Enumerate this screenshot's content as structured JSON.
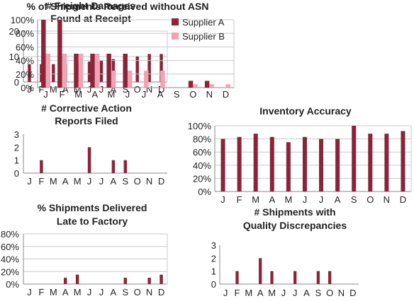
{
  "chart_data": [
    {
      "id": "freight",
      "type": "bar",
      "title": [
        "# Freight Damages",
        "Found at Receipt"
      ],
      "categories": [
        "J",
        "F",
        "M",
        "A",
        "M",
        "J",
        "J",
        "A",
        "S",
        "O",
        "N",
        "D"
      ],
      "ylim": [
        0,
        20
      ],
      "yticks": [
        0,
        10,
        20
      ],
      "ytick_labels": [
        "0",
        "10",
        "20"
      ],
      "grid": true,
      "series": [
        {
          "color": "#8b2339",
          "values": [
            7,
            7,
            7,
            7,
            8,
            8,
            8.5,
            9,
            10,
            10,
            11,
            11
          ]
        }
      ]
    },
    {
      "id": "asn",
      "type": "bar",
      "title": [
        "% of Shipments Received without ASN"
      ],
      "categories": [
        "J",
        "F",
        "M",
        "A",
        "M",
        "J",
        "J",
        "A",
        "S",
        "O",
        "N",
        "D"
      ],
      "ylim": [
        0,
        100
      ],
      "yticks": [
        0,
        20,
        40,
        60,
        80,
        100
      ],
      "ytick_labels": [
        "0%",
        "20%",
        "40%",
        "60%",
        "80%",
        "100%"
      ],
      "grid": true,
      "legend_position": "top-right",
      "series": [
        {
          "name": "Supplier A",
          "color": "#8b2339",
          "values": [
            100,
            100,
            50,
            50,
            50,
            50,
            0,
            0,
            0,
            10,
            10,
            0
          ]
        },
        {
          "name": "Supplier B",
          "color": "#f0a3b2",
          "values": [
            50,
            50,
            50,
            50,
            25,
            25,
            25,
            25,
            0,
            5,
            5,
            5
          ]
        }
      ]
    },
    {
      "id": "car",
      "type": "bar",
      "title": [
        "# Corrective Action",
        "Reports Filed"
      ],
      "categories": [
        "J",
        "F",
        "M",
        "A",
        "M",
        "J",
        "J",
        "A",
        "S",
        "O",
        "N",
        "D"
      ],
      "ylim": [
        0,
        3
      ],
      "yticks": [
        0,
        1,
        2,
        3
      ],
      "ytick_labels": [
        "0",
        "1",
        "2",
        "3"
      ],
      "grid": false,
      "series": [
        {
          "color": "#8b2339",
          "values": [
            0,
            1,
            0,
            0,
            0,
            2,
            0,
            1,
            1,
            0,
            0,
            0
          ]
        }
      ]
    },
    {
      "id": "inventory",
      "type": "bar",
      "title": [
        "Inventory Accuracy"
      ],
      "categories": [
        "J",
        "F",
        "M",
        "A",
        "M",
        "J",
        "J",
        "A",
        "S",
        "O",
        "N",
        "D"
      ],
      "ylim": [
        0,
        100
      ],
      "yticks": [
        0,
        20,
        40,
        60,
        80,
        100
      ],
      "ytick_labels": [
        "0%",
        "20%",
        "40%",
        "60%",
        "80%",
        "100%"
      ],
      "grid": true,
      "series": [
        {
          "color": "#8b2339",
          "values": [
            80,
            83,
            88,
            83,
            75,
            83,
            80,
            80,
            100,
            88,
            88,
            92
          ]
        }
      ]
    },
    {
      "id": "late",
      "type": "bar",
      "title": [
        "% Shipments Delivered",
        "Late to Factory"
      ],
      "categories": [
        "J",
        "F",
        "M",
        "A",
        "M",
        "J",
        "J",
        "A",
        "S",
        "O",
        "N",
        "D"
      ],
      "ylim": [
        0,
        80
      ],
      "yticks": [
        0,
        20,
        40,
        60,
        80
      ],
      "ytick_labels": [
        "0%",
        "20%",
        "40%",
        "60%",
        "80%"
      ],
      "grid": true,
      "series": [
        {
          "color": "#8b2339",
          "values": [
            0,
            0,
            0,
            10,
            15,
            0,
            0,
            0,
            10,
            0,
            10,
            15
          ]
        }
      ]
    },
    {
      "id": "quality",
      "type": "bar",
      "title": [
        "# Shipments with",
        "Quality Discrepancies"
      ],
      "categories": [
        "J",
        "F",
        "M",
        "A",
        "M",
        "J",
        "J",
        "A",
        "S",
        "O",
        "N",
        "D"
      ],
      "ylim": [
        0,
        3
      ],
      "yticks": [
        0,
        1,
        2,
        3
      ],
      "ytick_labels": [
        "0",
        "1",
        "2",
        "3"
      ],
      "grid": false,
      "series": [
        {
          "color": "#8b2339",
          "values": [
            0,
            1,
            0,
            2,
            1,
            0,
            1,
            0,
            1,
            1,
            0,
            0
          ]
        }
      ]
    }
  ]
}
